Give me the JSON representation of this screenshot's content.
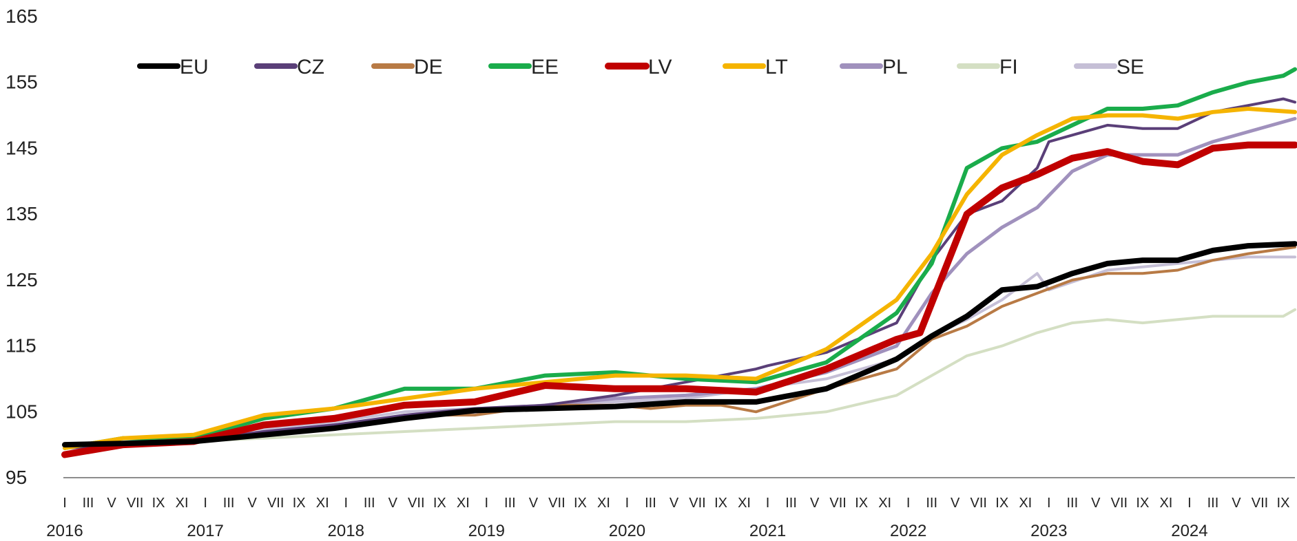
{
  "chart_data": {
    "type": "line",
    "title": "",
    "xlabel": "",
    "ylabel": "",
    "ylim": [
      95,
      165
    ],
    "yticks": [
      95,
      105,
      115,
      125,
      135,
      145,
      155,
      165
    ],
    "grid": false,
    "legend_position": "top",
    "start": "2016-01",
    "end": "2024-10",
    "month_labels": [
      "I",
      "III",
      "V",
      "VII",
      "IX",
      "XI"
    ],
    "years": [
      "2016",
      "2017",
      "2018",
      "2019",
      "2020",
      "2021",
      "2022",
      "2023",
      "2024"
    ],
    "series": [
      {
        "name": "EU",
        "color": "#000000",
        "width": 8,
        "points": [
          [
            "2016-01",
            100
          ],
          [
            "2016-06",
            100.2
          ],
          [
            "2016-12",
            100.5
          ],
          [
            "2017-06",
            101.5
          ],
          [
            "2017-12",
            102.5
          ],
          [
            "2018-06",
            104
          ],
          [
            "2018-12",
            105.2
          ],
          [
            "2019-06",
            105.5
          ],
          [
            "2019-12",
            105.8
          ],
          [
            "2020-06",
            106.5
          ],
          [
            "2020-12",
            106.5
          ],
          [
            "2021-06",
            108.5
          ],
          [
            "2021-12",
            113
          ],
          [
            "2022-03",
            116.5
          ],
          [
            "2022-06",
            119.5
          ],
          [
            "2022-09",
            123.5
          ],
          [
            "2022-12",
            124
          ],
          [
            "2023-03",
            126
          ],
          [
            "2023-06",
            127.5
          ],
          [
            "2023-09",
            128
          ],
          [
            "2023-12",
            128
          ],
          [
            "2024-03",
            129.5
          ],
          [
            "2024-06",
            130.2
          ],
          [
            "2024-10",
            130.5
          ]
        ]
      },
      {
        "name": "CZ",
        "color": "#5a3f78",
        "width": 4,
        "points": [
          [
            "2016-01",
            99.5
          ],
          [
            "2016-06",
            100
          ],
          [
            "2016-12",
            100.5
          ],
          [
            "2017-06",
            102
          ],
          [
            "2017-12",
            103
          ],
          [
            "2018-06",
            104.5
          ],
          [
            "2018-12",
            105.5
          ],
          [
            "2019-06",
            106
          ],
          [
            "2019-12",
            107.5
          ],
          [
            "2020-06",
            109.5
          ],
          [
            "2020-12",
            111.5
          ],
          [
            "2021-01",
            112
          ],
          [
            "2021-06",
            114
          ],
          [
            "2021-12",
            118.5
          ],
          [
            "2022-03",
            128
          ],
          [
            "2022-06",
            135
          ],
          [
            "2022-09",
            137
          ],
          [
            "2022-12",
            142
          ],
          [
            "2023-01",
            146
          ],
          [
            "2023-03",
            147
          ],
          [
            "2023-06",
            148.5
          ],
          [
            "2023-09",
            148
          ],
          [
            "2023-12",
            148
          ],
          [
            "2024-03",
            150.5
          ],
          [
            "2024-06",
            151.5
          ],
          [
            "2024-09",
            152.5
          ],
          [
            "2024-10",
            152
          ]
        ]
      },
      {
        "name": "DE",
        "color": "#b87a45",
        "width": 4,
        "points": [
          [
            "2016-01",
            99.5
          ],
          [
            "2016-06",
            100
          ],
          [
            "2016-12",
            100.5
          ],
          [
            "2017-06",
            101.5
          ],
          [
            "2017-12",
            102.5
          ],
          [
            "2018-06",
            104.5
          ],
          [
            "2018-12",
            104.5
          ],
          [
            "2019-06",
            106
          ],
          [
            "2019-12",
            106
          ],
          [
            "2020-03",
            105.5
          ],
          [
            "2020-06",
            106
          ],
          [
            "2020-09",
            106
          ],
          [
            "2020-12",
            105
          ],
          [
            "2021-06",
            108.5
          ],
          [
            "2021-12",
            111.5
          ],
          [
            "2022-03",
            116
          ],
          [
            "2022-06",
            118
          ],
          [
            "2022-09",
            121
          ],
          [
            "2022-12",
            123
          ],
          [
            "2023-03",
            125
          ],
          [
            "2023-06",
            126
          ],
          [
            "2023-09",
            126
          ],
          [
            "2023-12",
            126.5
          ],
          [
            "2024-03",
            128
          ],
          [
            "2024-06",
            129
          ],
          [
            "2024-10",
            130
          ]
        ]
      },
      {
        "name": "EE",
        "color": "#1aac4b",
        "width": 6,
        "points": [
          [
            "2016-01",
            99.5
          ],
          [
            "2016-06",
            101
          ],
          [
            "2016-12",
            101
          ],
          [
            "2017-06",
            104
          ],
          [
            "2017-12",
            105.5
          ],
          [
            "2018-06",
            108.5
          ],
          [
            "2018-12",
            108.5
          ],
          [
            "2019-06",
            110.5
          ],
          [
            "2019-12",
            111
          ],
          [
            "2020-06",
            110
          ],
          [
            "2020-12",
            109.5
          ],
          [
            "2021-06",
            112.5
          ],
          [
            "2021-12",
            120
          ],
          [
            "2022-03",
            127.5
          ],
          [
            "2022-06",
            142
          ],
          [
            "2022-09",
            145
          ],
          [
            "2022-12",
            146
          ],
          [
            "2023-03",
            148.5
          ],
          [
            "2023-06",
            151
          ],
          [
            "2023-09",
            151
          ],
          [
            "2023-12",
            151.5
          ],
          [
            "2024-03",
            153.5
          ],
          [
            "2024-06",
            155
          ],
          [
            "2024-09",
            156
          ],
          [
            "2024-10",
            157
          ]
        ]
      },
      {
        "name": "LV",
        "color": "#c00000",
        "width": 10,
        "points": [
          [
            "2016-01",
            98.5
          ],
          [
            "2016-06",
            100
          ],
          [
            "2016-12",
            100.5
          ],
          [
            "2017-06",
            103
          ],
          [
            "2017-12",
            104
          ],
          [
            "2018-06",
            106
          ],
          [
            "2018-12",
            106.5
          ],
          [
            "2019-06",
            109
          ],
          [
            "2019-12",
            108.5
          ],
          [
            "2020-06",
            108.5
          ],
          [
            "2020-12",
            108
          ],
          [
            "2021-06",
            111.5
          ],
          [
            "2021-12",
            116
          ],
          [
            "2022-02",
            117
          ],
          [
            "2022-06",
            135
          ],
          [
            "2022-09",
            139
          ],
          [
            "2022-12",
            141
          ],
          [
            "2023-03",
            143.5
          ],
          [
            "2023-06",
            144.5
          ],
          [
            "2023-09",
            143
          ],
          [
            "2023-12",
            142.5
          ],
          [
            "2024-03",
            145
          ],
          [
            "2024-06",
            145.5
          ],
          [
            "2024-10",
            145.5
          ]
        ]
      },
      {
        "name": "LT",
        "color": "#f5b400",
        "width": 6,
        "points": [
          [
            "2016-01",
            99.5
          ],
          [
            "2016-06",
            101
          ],
          [
            "2016-12",
            101.5
          ],
          [
            "2017-06",
            104.5
          ],
          [
            "2017-12",
            105.5
          ],
          [
            "2018-06",
            107
          ],
          [
            "2018-12",
            108.5
          ],
          [
            "2019-06",
            109.5
          ],
          [
            "2019-12",
            110.5
          ],
          [
            "2020-06",
            110.5
          ],
          [
            "2020-12",
            110
          ],
          [
            "2021-06",
            114.5
          ],
          [
            "2021-12",
            122
          ],
          [
            "2022-03",
            129
          ],
          [
            "2022-06",
            138
          ],
          [
            "2022-09",
            144
          ],
          [
            "2022-12",
            147
          ],
          [
            "2023-03",
            149.5
          ],
          [
            "2023-06",
            150
          ],
          [
            "2023-09",
            150
          ],
          [
            "2023-12",
            149.5
          ],
          [
            "2024-03",
            150.5
          ],
          [
            "2024-06",
            151
          ],
          [
            "2024-10",
            150.5
          ]
        ]
      },
      {
        "name": "PL",
        "color": "#a091bd",
        "width": 5,
        "points": [
          [
            "2016-01",
            99.5
          ],
          [
            "2016-06",
            100
          ],
          [
            "2016-12",
            100.5
          ],
          [
            "2017-06",
            102
          ],
          [
            "2017-12",
            103
          ],
          [
            "2018-06",
            104
          ],
          [
            "2018-12",
            105
          ],
          [
            "2019-06",
            106
          ],
          [
            "2019-12",
            107
          ],
          [
            "2020-06",
            107.5
          ],
          [
            "2020-12",
            108.5
          ],
          [
            "2021-06",
            111
          ],
          [
            "2021-12",
            115
          ],
          [
            "2022-03",
            123
          ],
          [
            "2022-06",
            129
          ],
          [
            "2022-09",
            133
          ],
          [
            "2022-12",
            136
          ],
          [
            "2023-03",
            141.5
          ],
          [
            "2023-06",
            144
          ],
          [
            "2023-09",
            144
          ],
          [
            "2023-12",
            144
          ],
          [
            "2024-03",
            146
          ],
          [
            "2024-06",
            147.5
          ],
          [
            "2024-10",
            149.5
          ]
        ]
      },
      {
        "name": "FI",
        "color": "#d4dfc3",
        "width": 4,
        "points": [
          [
            "2016-01",
            99.5
          ],
          [
            "2016-06",
            100
          ],
          [
            "2016-12",
            100.5
          ],
          [
            "2017-06",
            101
          ],
          [
            "2017-12",
            101.5
          ],
          [
            "2018-06",
            102
          ],
          [
            "2018-12",
            102.5
          ],
          [
            "2019-06",
            103
          ],
          [
            "2019-12",
            103.5
          ],
          [
            "2020-06",
            103.5
          ],
          [
            "2020-12",
            104
          ],
          [
            "2021-06",
            105
          ],
          [
            "2021-12",
            107.5
          ],
          [
            "2022-03",
            110.5
          ],
          [
            "2022-06",
            113.5
          ],
          [
            "2022-09",
            115
          ],
          [
            "2022-12",
            117
          ],
          [
            "2023-03",
            118.5
          ],
          [
            "2023-06",
            119
          ],
          [
            "2023-09",
            118.5
          ],
          [
            "2023-12",
            119
          ],
          [
            "2024-03",
            119.5
          ],
          [
            "2024-06",
            119.5
          ],
          [
            "2024-09",
            119.5
          ],
          [
            "2024-10",
            120.5
          ]
        ]
      },
      {
        "name": "SE",
        "color": "#c5bfd6",
        "width": 4,
        "points": [
          [
            "2016-01",
            99.5
          ],
          [
            "2016-06",
            101
          ],
          [
            "2016-12",
            101.5
          ],
          [
            "2017-06",
            102.5
          ],
          [
            "2017-12",
            103.5
          ],
          [
            "2018-06",
            105
          ],
          [
            "2018-12",
            105.5
          ],
          [
            "2019-06",
            106
          ],
          [
            "2019-12",
            106.5
          ],
          [
            "2020-06",
            107
          ],
          [
            "2020-12",
            108.5
          ],
          [
            "2021-06",
            110
          ],
          [
            "2021-12",
            113
          ],
          [
            "2022-03",
            116.5
          ],
          [
            "2022-06",
            119
          ],
          [
            "2022-09",
            122
          ],
          [
            "2022-12",
            126
          ],
          [
            "2023-01",
            123.5
          ],
          [
            "2023-06",
            126.5
          ],
          [
            "2023-09",
            127
          ],
          [
            "2023-12",
            127.5
          ],
          [
            "2024-03",
            128
          ],
          [
            "2024-06",
            128.5
          ],
          [
            "2024-10",
            128.5
          ]
        ]
      }
    ]
  }
}
